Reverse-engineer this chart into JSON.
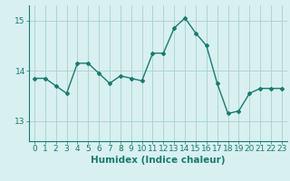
{
  "x": [
    0,
    1,
    2,
    3,
    4,
    5,
    6,
    7,
    8,
    9,
    10,
    11,
    12,
    13,
    14,
    15,
    16,
    17,
    18,
    19,
    20,
    21,
    22,
    23
  ],
  "y": [
    13.85,
    13.85,
    13.7,
    13.55,
    14.15,
    14.15,
    13.95,
    13.75,
    13.9,
    13.85,
    13.8,
    14.35,
    14.35,
    14.85,
    15.05,
    14.75,
    14.5,
    13.75,
    13.15,
    13.2,
    13.55,
    13.65,
    13.65,
    13.65
  ],
  "line_color": "#1a7a6e",
  "marker": "D",
  "marker_size": 2.0,
  "bg_color": "#d8f0f0",
  "grid_color": "#aacfcf",
  "xlabel": "Humidex (Indice chaleur)",
  "xlabel_fontsize": 7.5,
  "yticks": [
    13,
    14,
    15
  ],
  "xticks": [
    0,
    1,
    2,
    3,
    4,
    5,
    6,
    7,
    8,
    9,
    10,
    11,
    12,
    13,
    14,
    15,
    16,
    17,
    18,
    19,
    20,
    21,
    22,
    23
  ],
  "xlim": [
    -0.5,
    23.5
  ],
  "ylim": [
    12.6,
    15.3
  ],
  "tick_fontsize": 6.5,
  "tick_color": "#1a7a6e",
  "linewidth": 1.0
}
